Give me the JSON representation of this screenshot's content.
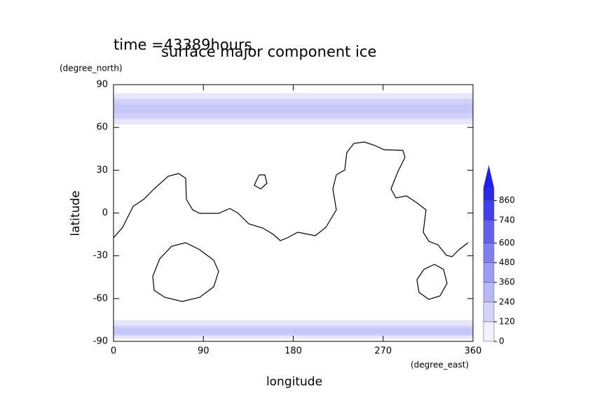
{
  "chart_data": {
    "type": "contour-map",
    "title": "surface major component ice",
    "subtitle": "time =43389hours",
    "x_label": "longitude",
    "x_unit": "(degree_east)",
    "y_label": "latitude",
    "y_unit": "(degree_north)",
    "xlim": [
      0,
      360
    ],
    "xticks": [
      0,
      90,
      180,
      270,
      360
    ],
    "ylim": [
      -90,
      90
    ],
    "yticks": [
      90,
      60,
      30,
      0,
      -30,
      -60,
      -90
    ],
    "clim": [
      0,
      940
    ],
    "cticks": [
      0,
      120,
      240,
      360,
      480,
      600,
      740,
      860
    ],
    "color": "#2020e6",
    "bands": [
      {
        "lat": [
          62,
          84
        ],
        "value": 100
      },
      {
        "lat": [
          66,
          80
        ],
        "value": 200
      },
      {
        "lat": [
          70,
          76
        ],
        "value": 240
      },
      {
        "lat": [
          -88,
          -75
        ],
        "value": 100
      },
      {
        "lat": [
          -86,
          -79
        ],
        "value": 200
      },
      {
        "lat": [
          -85,
          -81
        ],
        "value": 240
      }
    ]
  }
}
